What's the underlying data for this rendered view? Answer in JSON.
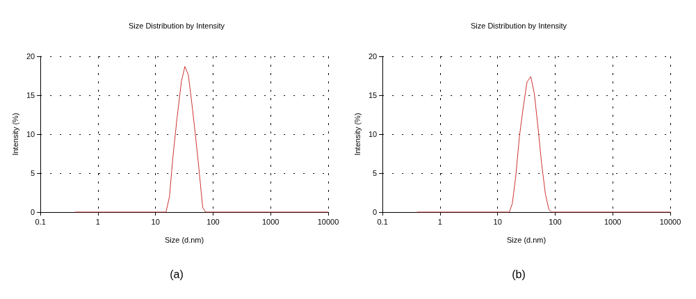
{
  "chart_data": [
    {
      "type": "line",
      "title": "Size Distribution by Intensity",
      "xlabel": "Size (d.nm)",
      "ylabel": "Intensity (%)",
      "annotations": [
        "(a)"
      ],
      "log": "x",
      "grid": true,
      "marker": "none",
      "line_style": "solid",
      "xlim": [
        0.1,
        10000
      ],
      "xticks": [
        0.1,
        1,
        10,
        100,
        1000,
        10000
      ],
      "ylim": [
        0,
        20
      ],
      "yticks": [
        0,
        5,
        10,
        15,
        20
      ],
      "series": [
        {
          "color": "#cc3333",
          "x": [
            0.4,
            15.2,
            17.5,
            20,
            23.5,
            28.2,
            32.4,
            37.2,
            42.7,
            49,
            56,
            66,
            74,
            10000
          ],
          "values": [
            0,
            0,
            2,
            7,
            11.9,
            16.8,
            18.7,
            17.6,
            14,
            10.1,
            6,
            0.6,
            0,
            0
          ]
        }
      ]
    },
    {
      "type": "line",
      "title": "Size Distribution by Intensity",
      "xlabel": "Size (d.nm)",
      "ylabel": "Intensity (%)",
      "annotations": [
        "(b)"
      ],
      "log": "x",
      "grid": true,
      "marker": "none",
      "line_style": "solid",
      "xlim": [
        0.1,
        10000
      ],
      "xticks": [
        0.1,
        1,
        10,
        100,
        1000,
        10000
      ],
      "ylim": [
        0,
        20
      ],
      "yticks": [
        0,
        5,
        10,
        15,
        20
      ],
      "series": [
        {
          "color": "#cc3333",
          "x": [
            0.4,
            16,
            18,
            20.6,
            24,
            27.7,
            32.4,
            37.7,
            43.5,
            50.8,
            58,
            67.7,
            78,
            87,
            10000
          ],
          "values": [
            0,
            0,
            1.1,
            4.5,
            9.8,
            13.3,
            16.7,
            17.4,
            15.2,
            10.6,
            6.3,
            2.3,
            0.3,
            0,
            0
          ]
        }
      ]
    }
  ]
}
